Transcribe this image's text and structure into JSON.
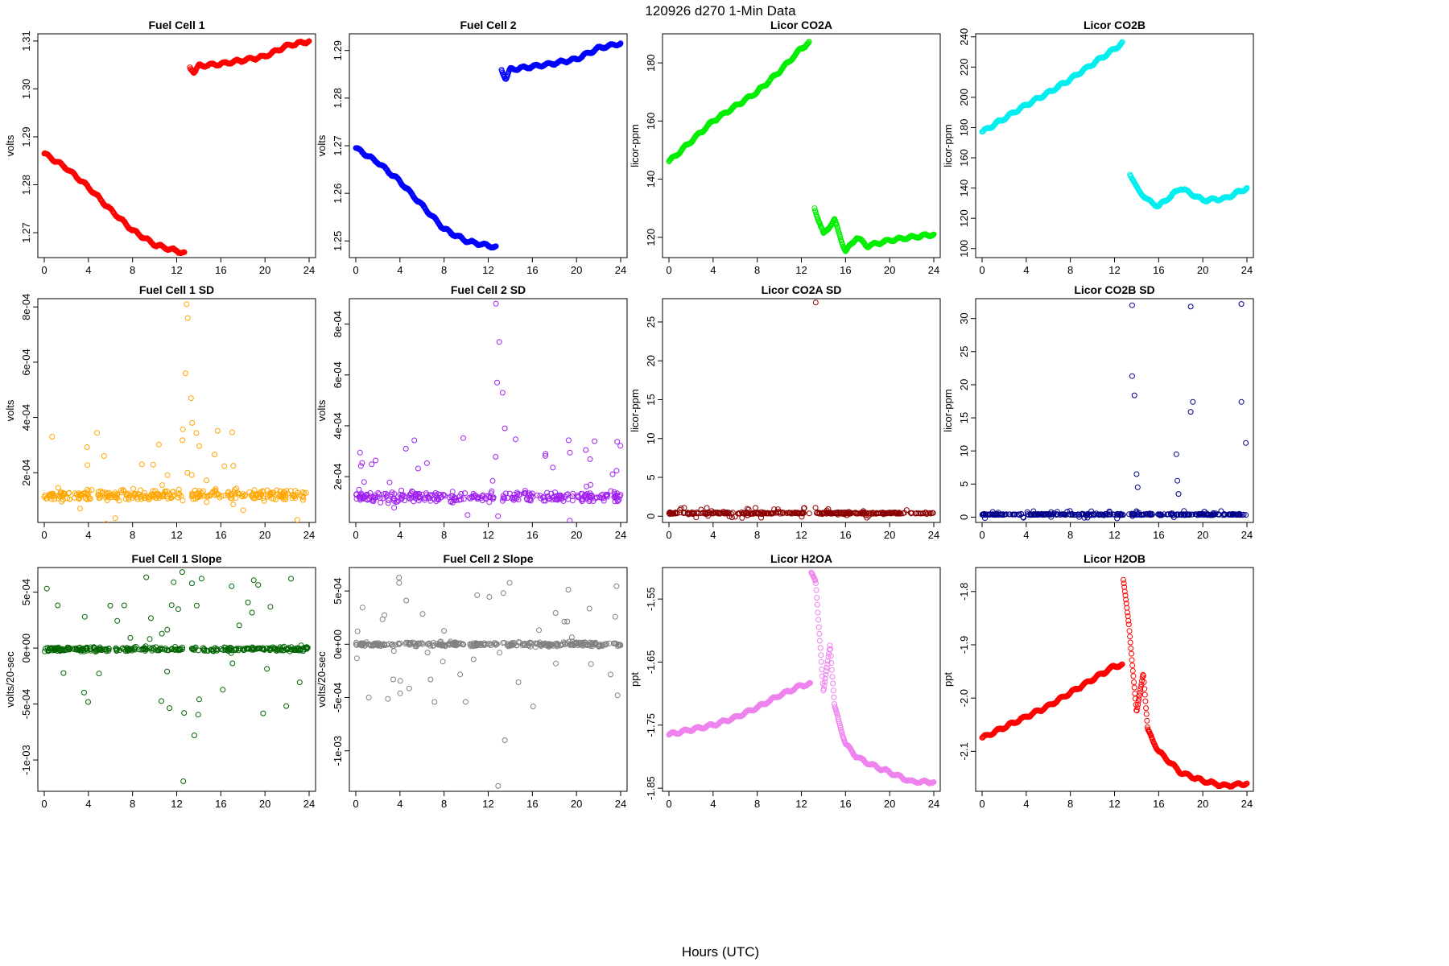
{
  "figure": {
    "suptitle": "120926   d270   1-Min Data",
    "xlabel": "Hours (UTC)"
  },
  "chart_data": [
    {
      "id": "fc1",
      "type": "scatter",
      "title": "Fuel Cell 1",
      "ylabel": "volts",
      "color": "#ff0000",
      "xlim": [
        0,
        24
      ],
      "xticks": [
        "0",
        "4",
        "8",
        "12",
        "16",
        "20",
        "24"
      ],
      "ylim": [
        1.2648,
        1.3115
      ],
      "ytick_values": [
        1.27,
        1.28,
        1.29,
        1.3,
        1.31
      ],
      "ytick_labels": [
        "1.27",
        "1.28",
        "1.29",
        "1.30",
        "1.31"
      ],
      "segments": [
        {
          "x": [
            0,
            2,
            4,
            6,
            8,
            10,
            12,
            12.7
          ],
          "y": [
            1.2865,
            1.2835,
            1.2795,
            1.2748,
            1.2705,
            1.2675,
            1.2662,
            1.2658
          ]
        },
        {
          "x": [
            13.2,
            13.6,
            14,
            16,
            18,
            20,
            22,
            24
          ],
          "y": [
            1.3045,
            1.3035,
            1.3048,
            1.3052,
            1.306,
            1.3068,
            1.309,
            1.31
          ]
        }
      ]
    },
    {
      "id": "fc2",
      "type": "scatter",
      "title": "Fuel Cell 2",
      "ylabel": "volts",
      "color": "#0000ff",
      "xlim": [
        0,
        24
      ],
      "xticks": [
        "0",
        "4",
        "8",
        "12",
        "16",
        "20",
        "24"
      ],
      "ylim": [
        1.2465,
        1.2935
      ],
      "ytick_values": [
        1.25,
        1.26,
        1.27,
        1.28,
        1.29
      ],
      "ytick_labels": [
        "1.25",
        "1.26",
        "1.27",
        "1.28",
        "1.29"
      ],
      "segments": [
        {
          "x": [
            0,
            2,
            4,
            6,
            8,
            10,
            12,
            12.7
          ],
          "y": [
            1.2695,
            1.2665,
            1.2625,
            1.2575,
            1.2525,
            1.25,
            1.249,
            1.2487
          ]
        },
        {
          "x": [
            13.2,
            13.6,
            14,
            16,
            18,
            20,
            22,
            24
          ],
          "y": [
            1.286,
            1.284,
            1.286,
            1.2866,
            1.2873,
            1.2882,
            1.2905,
            1.2915
          ]
        }
      ]
    },
    {
      "id": "co2a",
      "type": "scatter",
      "title": "Licor CO2A",
      "ylabel": "licor-ppm",
      "color": "#00ee00",
      "xlim": [
        0,
        24
      ],
      "xticks": [
        "0",
        "4",
        "8",
        "12",
        "16",
        "20",
        "24"
      ],
      "ylim": [
        113,
        190
      ],
      "ytick_values": [
        120,
        140,
        160,
        180
      ],
      "ytick_labels": [
        "120",
        "140",
        "160",
        "180"
      ],
      "segments": [
        {
          "x": [
            0,
            2,
            4,
            6,
            8,
            10,
            12,
            12.7
          ],
          "y": [
            146,
            153,
            160,
            165,
            170,
            177,
            185,
            187
          ]
        },
        {
          "x": [
            13.2,
            14,
            15,
            16,
            17,
            18,
            20,
            22,
            24
          ],
          "y": [
            130,
            121,
            126,
            115,
            120,
            117,
            119,
            120,
            121
          ]
        }
      ]
    },
    {
      "id": "co2b",
      "type": "scatter",
      "title": "Licor CO2B",
      "ylabel": "licor-ppm",
      "color": "#00eeee",
      "xlim": [
        0,
        24
      ],
      "xticks": [
        "0",
        "4",
        "8",
        "12",
        "16",
        "20",
        "24"
      ],
      "ylim": [
        94,
        242
      ],
      "ytick_values": [
        100,
        120,
        140,
        160,
        180,
        200,
        220,
        240
      ],
      "ytick_labels": [
        "100",
        "120",
        "140",
        "160",
        "180",
        "200",
        "220",
        "240"
      ],
      "segments": [
        {
          "x": [
            0,
            2,
            4,
            6,
            8,
            10,
            12,
            12.7
          ],
          "y": [
            177,
            186,
            195,
            203,
            212,
            222,
            232,
            236
          ]
        },
        {
          "x": [
            13.4,
            14,
            15,
            16,
            17,
            18,
            20,
            22,
            24
          ],
          "y": [
            150,
            140,
            132,
            128,
            134,
            140,
            132,
            133,
            140
          ]
        }
      ]
    },
    {
      "id": "fc1sd",
      "type": "scatter",
      "title": "Fuel Cell 1 SD",
      "ylabel": "volts",
      "color": "#ffa500",
      "xlim": [
        0,
        24
      ],
      "xticks": [
        "0",
        "4",
        "8",
        "12",
        "16",
        "20",
        "24"
      ],
      "ylim": [
        2e-05,
        0.00083
      ],
      "ytick_values": [
        0.0002,
        0.0004,
        0.0006,
        0.0008
      ],
      "ytick_labels": [
        "2e-04",
        "4e-04",
        "6e-04",
        "8e-04"
      ],
      "baseline": 0.00012,
      "spread": 3e-05,
      "outlier_max": 0.00036,
      "spikes": [
        {
          "x": 12.9,
          "y": 0.00081
        },
        {
          "x": 13.0,
          "y": 0.00076
        },
        {
          "x": 12.8,
          "y": 0.00056
        },
        {
          "x": 13.3,
          "y": 0.00047
        },
        {
          "x": 13.4,
          "y": 0.00038
        }
      ]
    },
    {
      "id": "fc2sd",
      "type": "scatter",
      "title": "Fuel Cell 2 SD",
      "ylabel": "volts",
      "color": "#a020f0",
      "xlim": [
        0,
        24
      ],
      "xticks": [
        "0",
        "4",
        "8",
        "12",
        "16",
        "20",
        "24"
      ],
      "ylim": [
        2e-05,
        0.0009
      ],
      "ytick_values": [
        0.0002,
        0.0004,
        0.0006,
        0.0008
      ],
      "ytick_labels": [
        "2e-04",
        "4e-04",
        "6e-04",
        "8e-04"
      ],
      "baseline": 0.00012,
      "spread": 3e-05,
      "outlier_max": 0.00036,
      "spikes": [
        {
          "x": 12.7,
          "y": 0.00088
        },
        {
          "x": 13.0,
          "y": 0.00073
        },
        {
          "x": 12.8,
          "y": 0.00057
        },
        {
          "x": 13.3,
          "y": 0.00053
        },
        {
          "x": 13.5,
          "y": 0.00039
        }
      ]
    },
    {
      "id": "co2asd",
      "type": "scatter",
      "title": "Licor CO2A SD",
      "ylabel": "licor-ppm",
      "color": "#8b0000",
      "xlim": [
        0,
        24
      ],
      "xticks": [
        "0",
        "4",
        "8",
        "12",
        "16",
        "20",
        "24"
      ],
      "ylim": [
        -0.8,
        28
      ],
      "ytick_values": [
        0,
        5,
        10,
        15,
        20,
        25
      ],
      "ytick_labels": [
        "0",
        "5",
        "10",
        "15",
        "20",
        "25"
      ],
      "baseline": 0.4,
      "spread": 0.18,
      "outlier_max": 1.1,
      "spikes": [
        {
          "x": 13.3,
          "y": 27.5
        }
      ]
    },
    {
      "id": "co2bsd",
      "type": "scatter",
      "title": "Licor CO2B SD",
      "ylabel": "licor-ppm",
      "color": "#00008b",
      "xlim": [
        0,
        24
      ],
      "xticks": [
        "0",
        "4",
        "8",
        "12",
        "16",
        "20",
        "24"
      ],
      "ylim": [
        -0.8,
        33
      ],
      "ytick_values": [
        0,
        5,
        10,
        15,
        20,
        25,
        30
      ],
      "ytick_labels": [
        "0",
        "5",
        "10",
        "15",
        "20",
        "25",
        "30"
      ],
      "baseline": 0.4,
      "spread": 0.15,
      "outlier_max": 1.0,
      "spikes": [
        {
          "x": 13.6,
          "y": 32
        },
        {
          "x": 13.6,
          "y": 21.3
        },
        {
          "x": 13.8,
          "y": 18.4
        },
        {
          "x": 14.0,
          "y": 6.5
        },
        {
          "x": 14.1,
          "y": 4.5
        },
        {
          "x": 18.9,
          "y": 31.8
        },
        {
          "x": 19.1,
          "y": 17.4
        },
        {
          "x": 18.9,
          "y": 15.9
        },
        {
          "x": 17.6,
          "y": 9.5
        },
        {
          "x": 23.5,
          "y": 32.2
        },
        {
          "x": 23.5,
          "y": 17.4
        },
        {
          "x": 23.9,
          "y": 11.2
        },
        {
          "x": 17.7,
          "y": 5.5
        },
        {
          "x": 17.8,
          "y": 3.5
        }
      ]
    },
    {
      "id": "fc1slope",
      "type": "scatter",
      "title": "Fuel Cell 1 Slope",
      "ylabel": "volts/20-sec",
      "color": "#006400",
      "xlim": [
        0,
        24
      ],
      "xticks": [
        "0",
        "4",
        "8",
        "12",
        "16",
        "20",
        "24"
      ],
      "ylim": [
        -0.00128,
        0.00072
      ],
      "ytick_values": [
        -0.001,
        -0.0005,
        0,
        0.0005
      ],
      "ytick_labels": [
        "-1e-03",
        "-5e-04",
        "0e+00",
        "5e-04"
      ],
      "baseline": -1e-05,
      "spread": 3e-05,
      "outlier_max": 0.00065,
      "spikes": [
        {
          "x": 12.6,
          "y": -0.00119
        },
        {
          "x": 13.6,
          "y": -0.00078
        },
        {
          "x": 12.5,
          "y": 0.00068
        }
      ]
    },
    {
      "id": "fc2slope",
      "type": "scatter",
      "title": "Fuel Cell 2 Slope",
      "ylabel": "volts/20-sec",
      "color": "#808080",
      "xlim": [
        0,
        24
      ],
      "xticks": [
        "0",
        "4",
        "8",
        "12",
        "16",
        "20",
        "24"
      ],
      "ylim": [
        -0.00138,
        0.00072
      ],
      "ytick_values": [
        -0.001,
        -0.0005,
        0,
        0.0005
      ],
      "ytick_labels": [
        "-1e-03",
        "-5e-04",
        "0e+00",
        "5e-04"
      ],
      "baseline": 0.0,
      "spread": 3e-05,
      "outlier_max": 0.00065,
      "spikes": [
        {
          "x": 12.9,
          "y": -0.00133
        },
        {
          "x": 13.5,
          "y": -0.0009
        }
      ]
    },
    {
      "id": "h2oa",
      "type": "scatter",
      "title": "Licor H2OA",
      "ylabel": "ppt",
      "color": "#ee82ee",
      "xlim": [
        0,
        24
      ],
      "xticks": [
        "0",
        "4",
        "8",
        "12",
        "16",
        "20",
        "24"
      ],
      "ylim": [
        -1.855,
        -1.5
      ],
      "ytick_values": [
        -1.85,
        -1.75,
        -1.65,
        -1.55
      ],
      "ytick_labels": [
        "-1.85",
        "-1.75",
        "-1.65",
        "-1.55"
      ],
      "segments": [
        {
          "x": [
            0,
            2,
            4,
            6,
            8,
            10,
            12,
            12.8
          ],
          "y": [
            -1.765,
            -1.757,
            -1.75,
            -1.738,
            -1.722,
            -1.703,
            -1.687,
            -1.685
          ]
        },
        {
          "x": [
            12.9,
            13.3,
            14,
            14.6,
            15,
            16,
            17,
            18,
            20,
            22,
            24
          ],
          "y": [
            -1.51,
            -1.52,
            -1.7,
            -1.62,
            -1.72,
            -1.78,
            -1.8,
            -1.81,
            -1.825,
            -1.84,
            -1.84
          ]
        }
      ]
    },
    {
      "id": "h2ob",
      "type": "scatter",
      "title": "Licor H2OB",
      "ylabel": "ppt",
      "color": "#ff0000",
      "xlim": [
        0,
        24
      ],
      "xticks": [
        "0",
        "4",
        "8",
        "12",
        "16",
        "20",
        "24"
      ],
      "ylim": [
        -2.175,
        -1.755
      ],
      "ytick_values": [
        -2.1,
        -2.0,
        -1.9,
        -1.8
      ],
      "ytick_labels": [
        "-2.1",
        "-2.0",
        "-1.9",
        "-1.8"
      ],
      "segments": [
        {
          "x": [
            0,
            2,
            4,
            6,
            8,
            10,
            12,
            12.7
          ],
          "y": [
            -2.075,
            -2.055,
            -2.035,
            -2.015,
            -1.99,
            -1.965,
            -1.94,
            -1.938
          ]
        },
        {
          "x": [
            12.8,
            13.3,
            14,
            14.6,
            15,
            16,
            17,
            18,
            20,
            22,
            24
          ],
          "y": [
            -1.78,
            -1.86,
            -2.03,
            -1.95,
            -2.06,
            -2.1,
            -2.12,
            -2.14,
            -2.155,
            -2.165,
            -2.16
          ]
        }
      ]
    }
  ]
}
